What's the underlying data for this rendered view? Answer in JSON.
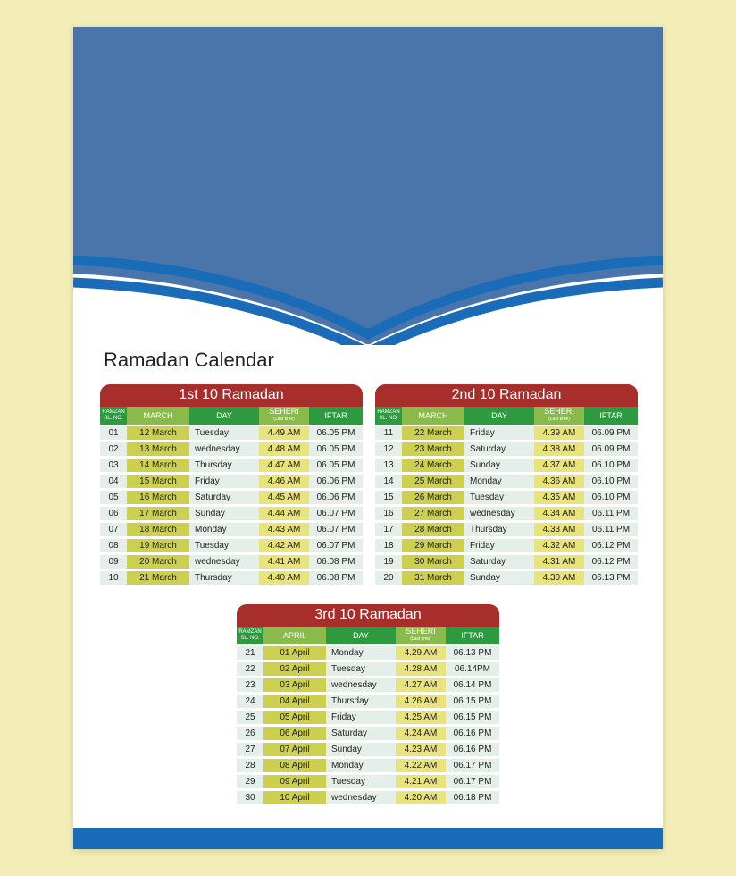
{
  "colors": {
    "page_bg": "#f3eeb8",
    "hero_blue": "#4a75ab",
    "curve_stroke": "#1a6bb8",
    "title_bg": "#a82e2c",
    "head_green_dark": "#2e9a3f",
    "head_green_light": "#8abb4a",
    "row_date_bg": "#cdd04f",
    "row_seh_bg": "#e8e37a"
  },
  "title": "Ramadan Calendar",
  "head": {
    "sl_line1": "RAMZAN",
    "sl_line2": "SL. NO.",
    "day": "DAY",
    "seheri": "SEHERI",
    "seheri_sub": "(Last time)",
    "iftar": "IFTAR"
  },
  "blocks": [
    {
      "title": "1st 10 Ramadan",
      "month_head": "MARCH",
      "rows": [
        {
          "sl": "01",
          "date": "12 March",
          "day": "Tuesday",
          "seh": "4.49 AM",
          "ift": "06.05 PM"
        },
        {
          "sl": "02",
          "date": "13 March",
          "day": "wednesday",
          "seh": "4.48 AM",
          "ift": "06.05 PM"
        },
        {
          "sl": "03",
          "date": "14 March",
          "day": "Thursday",
          "seh": "4.47 AM",
          "ift": "06.05 PM"
        },
        {
          "sl": "04",
          "date": "15 March",
          "day": "Friday",
          "seh": "4.46 AM",
          "ift": "06.06 PM"
        },
        {
          "sl": "05",
          "date": "16 March",
          "day": "Saturday",
          "seh": "4.45 AM",
          "ift": "06.06 PM"
        },
        {
          "sl": "06",
          "date": "17 March",
          "day": "Sunday",
          "seh": "4.44 AM",
          "ift": "06.07 PM"
        },
        {
          "sl": "07",
          "date": "18 March",
          "day": "Monday",
          "seh": "4.43 AM",
          "ift": "06.07 PM"
        },
        {
          "sl": "08",
          "date": "19 March",
          "day": "Tuesday",
          "seh": "4.42 AM",
          "ift": "06.07 PM"
        },
        {
          "sl": "09",
          "date": "20 March",
          "day": "wednesday",
          "seh": "4.41 AM",
          "ift": "06.08 PM"
        },
        {
          "sl": "10",
          "date": "21 March",
          "day": "Thursday",
          "seh": "4.40 AM",
          "ift": "06.08 PM"
        }
      ]
    },
    {
      "title": "2nd 10 Ramadan",
      "month_head": "MARCH",
      "rows": [
        {
          "sl": "11",
          "date": "22 March",
          "day": "Friday",
          "seh": "4.39 AM",
          "ift": "06.09 PM"
        },
        {
          "sl": "12",
          "date": "23 March",
          "day": "Saturday",
          "seh": "4.38 AM",
          "ift": "06.09 PM"
        },
        {
          "sl": "13",
          "date": "24 March",
          "day": "Sunday",
          "seh": "4.37 AM",
          "ift": "06.10 PM"
        },
        {
          "sl": "14",
          "date": "25 March",
          "day": "Monday",
          "seh": "4.36 AM",
          "ift": "06.10 PM"
        },
        {
          "sl": "15",
          "date": "26 March",
          "day": "Tuesday",
          "seh": "4.35 AM",
          "ift": "06.10 PM"
        },
        {
          "sl": "16",
          "date": "27 March",
          "day": "wednesday",
          "seh": "4.34 AM",
          "ift": "06.11 PM"
        },
        {
          "sl": "17",
          "date": "28 March",
          "day": "Thursday",
          "seh": "4.33 AM",
          "ift": "06.11 PM"
        },
        {
          "sl": "18",
          "date": "29 March",
          "day": "Friday",
          "seh": "4.32 AM",
          "ift": "06.12 PM"
        },
        {
          "sl": "19",
          "date": "30 March",
          "day": "Saturday",
          "seh": "4.31 AM",
          "ift": "06.12 PM"
        },
        {
          "sl": "20",
          "date": "31 March",
          "day": "Sunday",
          "seh": "4.30 AM",
          "ift": "06.13 PM"
        }
      ]
    },
    {
      "title": "3rd 10 Ramadan",
      "month_head": "APRIL",
      "rows": [
        {
          "sl": "21",
          "date": "01 April",
          "day": "Monday",
          "seh": "4.29 AM",
          "ift": "06.13 PM"
        },
        {
          "sl": "22",
          "date": "02 April",
          "day": "Tuesday",
          "seh": "4.28 AM",
          "ift": "06.14PM"
        },
        {
          "sl": "23",
          "date": "03 April",
          "day": "wednesday",
          "seh": "4.27 AM",
          "ift": "06.14 PM"
        },
        {
          "sl": "24",
          "date": "04 April",
          "day": "Thursday",
          "seh": "4.26 AM",
          "ift": "06.15 PM"
        },
        {
          "sl": "25",
          "date": "05 April",
          "day": "Friday",
          "seh": "4.25 AM",
          "ift": "06.15 PM"
        },
        {
          "sl": "26",
          "date": "06 April",
          "day": "Saturday",
          "seh": "4.24 AM",
          "ift": "06.16 PM"
        },
        {
          "sl": "27",
          "date": "07 April",
          "day": "Sunday",
          "seh": "4.23 AM",
          "ift": "06.16 PM"
        },
        {
          "sl": "28",
          "date": "08 April",
          "day": "Monday",
          "seh": "4.22 AM",
          "ift": "06.17 PM"
        },
        {
          "sl": "29",
          "date": "09 April",
          "day": "Tuesday",
          "seh": "4.21 AM",
          "ift": "06.17 PM"
        },
        {
          "sl": "30",
          "date": "10 April",
          "day": "wednesday",
          "seh": "4.20 AM",
          "ift": "06.18 PM"
        }
      ]
    }
  ]
}
